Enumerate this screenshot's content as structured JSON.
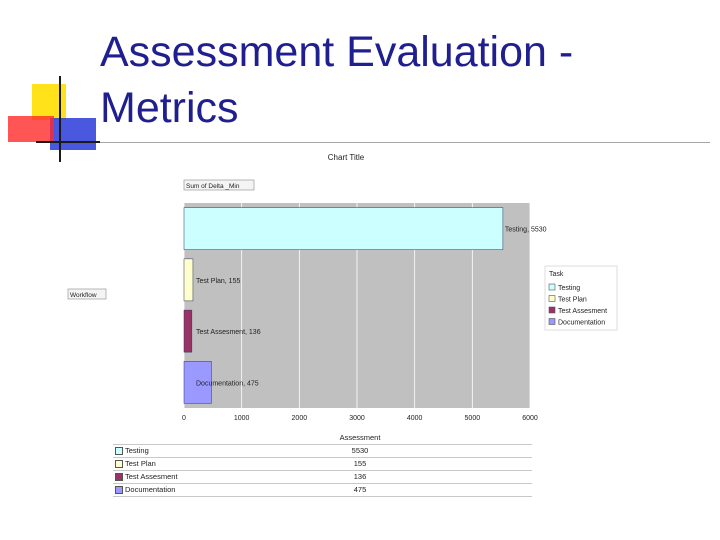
{
  "slide": {
    "title": "Assessment Evaluation -\nMetrics"
  },
  "chart_data": {
    "type": "bar",
    "orientation": "horizontal",
    "title": "Chart Title",
    "measure_label": "Sum of Delta _Min",
    "axis_field_label": "Workflow",
    "legend_title": "Task",
    "legend_position": "right",
    "grid": true,
    "xlim": [
      0,
      6000
    ],
    "x_ticks": [
      "0",
      "1000",
      "2000",
      "3000",
      "4000",
      "5000",
      "6000"
    ],
    "series": [
      {
        "name": "Testing",
        "value": 5530,
        "label": "Testing, 5530",
        "color": "#ccffff"
      },
      {
        "name": "Test Plan",
        "value": 155,
        "label": "Test Plan, 155",
        "color": "#ffffcc"
      },
      {
        "name": "Test Assesment",
        "value": 136,
        "label": "Test Assesment, 136",
        "color": "#993366"
      },
      {
        "name": "Documentation",
        "value": 475,
        "label": "Documentation, 475",
        "color": "#9999ff"
      }
    ],
    "table": {
      "header": "Assessment",
      "rows": [
        {
          "name": "Testing",
          "value": "5530"
        },
        {
          "name": "Test Plan",
          "value": "155"
        },
        {
          "name": "Test Assesment",
          "value": "136"
        },
        {
          "name": "Documentation",
          "value": "475"
        }
      ]
    }
  }
}
